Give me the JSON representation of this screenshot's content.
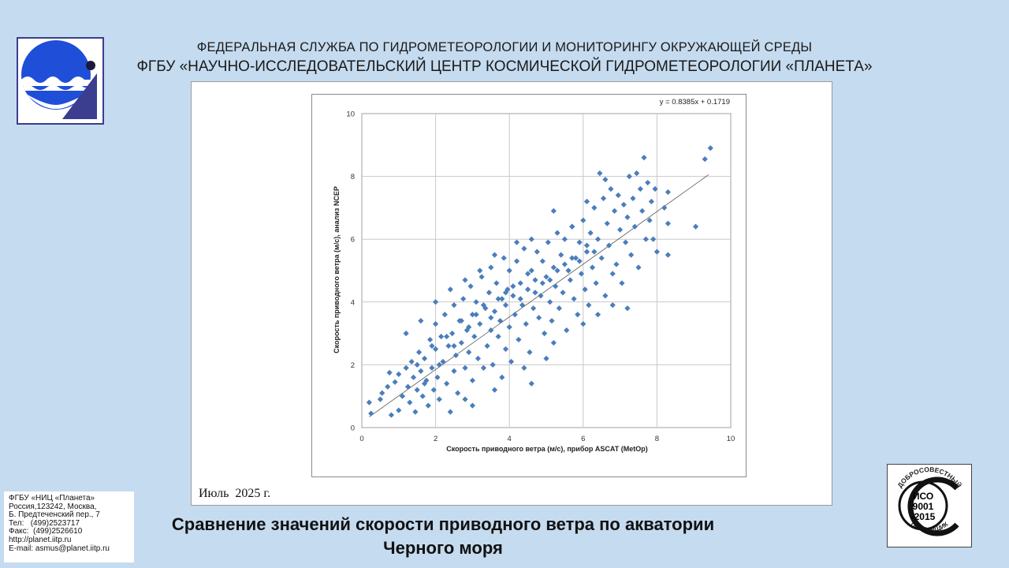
{
  "header": {
    "line1": "ФЕДЕРАЛЬНАЯ СЛУЖБА ПО ГИДРОМЕТЕОРОЛОГИИ И МОНИТОРИНГУ ОКРУЖАЮЩЕЙ СРЕДЫ",
    "line2": "ФГБУ «НАУЧНО-ИССЛЕДОВАТЕЛЬСКИЙ ЦЕНТР КОСМИЧЕСКОЙ ГИДРОМЕТЕОРОЛОГИИ «ПЛАНЕТА»"
  },
  "period": "Июль  2025 г.",
  "caption": {
    "line1": "Сравнение значений скорости приводного ветра по акватории",
    "line2": "Черного моря"
  },
  "contact": {
    "lines": [
      "ФГБУ «НИЦ «Планета»",
      "Россия,123242, Москва,",
      "Б. Предтеченский пер., 7",
      "Тел:   (499)2523717",
      "Факс:  (499)2526610",
      "http://planet.iitp.ru",
      "E-mail: asmus@planet.iitp.ru"
    ]
  },
  "certificate": {
    "top_text": "ДОБРОСОВЕСТНЫЙ",
    "bottom_text": "ПОСТАВЩИК",
    "center_lines": [
      "ИСО",
      "9001",
      "-2015"
    ]
  },
  "colors": {
    "background": "#c5dbef",
    "marker": "#4a7ebb",
    "logo_blue": "#1f4fd8",
    "logo_frame": "#3b3d8f"
  },
  "chart_data": {
    "type": "scatter",
    "xlabel": "Скорость приводного ветра (м/с), прибор ASCAT (MetOp)",
    "ylabel": "Скорость приводного ветра (м/с), анализ NCEP",
    "xlim": [
      0,
      10
    ],
    "ylim": [
      0,
      10
    ],
    "xticks": [
      "0",
      "2",
      "4",
      "6",
      "8",
      "10"
    ],
    "yticks": [
      "0",
      "2",
      "4",
      "6",
      "8",
      "10"
    ],
    "grid": true,
    "marker": "diamond",
    "trendline": {
      "slope": 0.8385,
      "intercept": 0.1719,
      "x_range": [
        0.2,
        9.4
      ],
      "label": "y = 0.8385x + 0.1719"
    },
    "points": [
      [
        0.2,
        0.8
      ],
      [
        0.25,
        0.45
      ],
      [
        0.5,
        0.9
      ],
      [
        0.55,
        1.1
      ],
      [
        0.7,
        1.3
      ],
      [
        0.75,
        1.75
      ],
      [
        0.8,
        0.4
      ],
      [
        0.9,
        1.45
      ],
      [
        1.0,
        1.7
      ],
      [
        1.0,
        0.55
      ],
      [
        1.1,
        1.0
      ],
      [
        1.2,
        1.9
      ],
      [
        1.25,
        1.3
      ],
      [
        1.3,
        0.8
      ],
      [
        1.35,
        2.1
      ],
      [
        1.4,
        1.6
      ],
      [
        1.45,
        0.5
      ],
      [
        1.5,
        1.2
      ],
      [
        1.55,
        2.4
      ],
      [
        1.6,
        1.8
      ],
      [
        1.65,
        1.0
      ],
      [
        1.7,
        2.2
      ],
      [
        1.75,
        1.5
      ],
      [
        1.8,
        0.7
      ],
      [
        1.85,
        2.8
      ],
      [
        1.9,
        1.9
      ],
      [
        1.95,
        1.2
      ],
      [
        2.0,
        2.5
      ],
      [
        2.0,
        3.3
      ],
      [
        2.05,
        1.6
      ],
      [
        2.1,
        0.9
      ],
      [
        2.15,
        2.9
      ],
      [
        2.2,
        2.1
      ],
      [
        2.25,
        3.6
      ],
      [
        2.3,
        1.4
      ],
      [
        2.35,
        2.6
      ],
      [
        2.4,
        0.5
      ],
      [
        2.45,
        3.0
      ],
      [
        2.5,
        1.8
      ],
      [
        2.5,
        3.9
      ],
      [
        2.55,
        2.3
      ],
      [
        2.6,
        1.1
      ],
      [
        2.65,
        3.4
      ],
      [
        2.7,
        2.7
      ],
      [
        2.75,
        4.1
      ],
      [
        2.8,
        1.9
      ],
      [
        2.85,
        3.1
      ],
      [
        2.9,
        2.4
      ],
      [
        2.95,
        4.5
      ],
      [
        3.0,
        1.5
      ],
      [
        3.0,
        3.6
      ],
      [
        3.05,
        2.9
      ],
      [
        3.1,
        4.0
      ],
      [
        3.15,
        2.2
      ],
      [
        3.2,
        3.3
      ],
      [
        3.25,
        4.8
      ],
      [
        3.3,
        1.9
      ],
      [
        3.35,
        3.8
      ],
      [
        3.4,
        2.6
      ],
      [
        3.45,
        4.3
      ],
      [
        3.5,
        3.1
      ],
      [
        3.5,
        5.1
      ],
      [
        3.55,
        2.0
      ],
      [
        3.6,
        3.7
      ],
      [
        3.65,
        4.6
      ],
      [
        3.7,
        2.9
      ],
      [
        3.75,
        3.4
      ],
      [
        3.8,
        4.1
      ],
      [
        3.85,
        5.4
      ],
      [
        3.9,
        2.5
      ],
      [
        3.9,
        3.9
      ],
      [
        3.95,
        4.4
      ],
      [
        4.0,
        3.2
      ],
      [
        4.0,
        5.0
      ],
      [
        4.05,
        2.1
      ],
      [
        4.1,
        4.2
      ],
      [
        4.15,
        3.6
      ],
      [
        4.2,
        5.3
      ],
      [
        4.25,
        2.8
      ],
      [
        4.3,
        4.6
      ],
      [
        4.35,
        3.9
      ],
      [
        4.4,
        5.7
      ],
      [
        4.45,
        3.3
      ],
      [
        4.5,
        4.4
      ],
      [
        4.55,
        2.4
      ],
      [
        4.6,
        5.0
      ],
      [
        4.65,
        3.8
      ],
      [
        4.7,
        4.7
      ],
      [
        4.75,
        5.6
      ],
      [
        4.8,
        3.5
      ],
      [
        4.85,
        4.2
      ],
      [
        4.9,
        5.3
      ],
      [
        4.95,
        3.0
      ],
      [
        5.0,
        4.8
      ],
      [
        5.05,
        5.9
      ],
      [
        5.1,
        4.0
      ],
      [
        5.15,
        3.4
      ],
      [
        5.2,
        5.1
      ],
      [
        5.25,
        4.5
      ],
      [
        5.3,
        6.2
      ],
      [
        5.35,
        3.8
      ],
      [
        5.4,
        5.5
      ],
      [
        5.45,
        4.3
      ],
      [
        5.5,
        6.0
      ],
      [
        5.55,
        3.1
      ],
      [
        5.6,
        5.0
      ],
      [
        5.65,
        4.7
      ],
      [
        5.7,
        6.4
      ],
      [
        5.75,
        4.1
      ],
      [
        5.8,
        5.4
      ],
      [
        5.85,
        3.6
      ],
      [
        5.9,
        5.9
      ],
      [
        5.95,
        4.9
      ],
      [
        6.0,
        6.6
      ],
      [
        6.05,
        4.4
      ],
      [
        6.1,
        5.6
      ],
      [
        6.15,
        3.9
      ],
      [
        6.2,
        6.2
      ],
      [
        6.25,
        5.1
      ],
      [
        6.3,
        7.0
      ],
      [
        6.35,
        4.6
      ],
      [
        6.4,
        6.0
      ],
      [
        6.45,
        8.1
      ],
      [
        6.5,
        5.4
      ],
      [
        6.55,
        7.3
      ],
      [
        6.6,
        4.2
      ],
      [
        6.65,
        6.5
      ],
      [
        6.7,
        5.8
      ],
      [
        6.75,
        7.6
      ],
      [
        6.8,
        4.9
      ],
      [
        6.85,
        6.9
      ],
      [
        6.9,
        5.2
      ],
      [
        6.95,
        7.4
      ],
      [
        7.0,
        6.3
      ],
      [
        7.05,
        4.6
      ],
      [
        7.1,
        7.1
      ],
      [
        7.15,
        5.9
      ],
      [
        7.2,
        6.7
      ],
      [
        7.25,
        8.0
      ],
      [
        7.3,
        5.5
      ],
      [
        7.35,
        7.3
      ],
      [
        7.4,
        6.4
      ],
      [
        7.45,
        8.1
      ],
      [
        7.5,
        5.1
      ],
      [
        7.55,
        7.6
      ],
      [
        7.6,
        6.9
      ],
      [
        7.65,
        8.6
      ],
      [
        7.7,
        6.0
      ],
      [
        7.75,
        7.8
      ],
      [
        7.8,
        6.6
      ],
      [
        7.85,
        7.2
      ],
      [
        7.9,
        6.0
      ],
      [
        7.95,
        7.6
      ],
      [
        8.0,
        5.6
      ],
      [
        8.2,
        7.0
      ],
      [
        8.3,
        5.5
      ],
      [
        8.3,
        6.5
      ],
      [
        8.3,
        7.5
      ],
      [
        9.05,
        6.4
      ],
      [
        9.3,
        8.55
      ],
      [
        9.45,
        8.9
      ],
      [
        1.5,
        2.0
      ],
      [
        1.7,
        1.4
      ],
      [
        1.9,
        2.6
      ],
      [
        2.1,
        2.0
      ],
      [
        2.3,
        2.9
      ],
      [
        2.5,
        2.6
      ],
      [
        2.7,
        3.4
      ],
      [
        2.9,
        3.2
      ],
      [
        3.1,
        3.6
      ],
      [
        3.3,
        3.9
      ],
      [
        3.5,
        3.5
      ],
      [
        3.7,
        4.1
      ],
      [
        3.9,
        4.3
      ],
      [
        4.1,
        4.5
      ],
      [
        4.3,
        4.1
      ],
      [
        4.5,
        4.9
      ],
      [
        4.7,
        4.3
      ],
      [
        4.9,
        4.6
      ],
      [
        5.1,
        4.7
      ],
      [
        5.3,
        5.0
      ],
      [
        5.5,
        5.2
      ],
      [
        5.7,
        5.4
      ],
      [
        5.9,
        5.3
      ],
      [
        6.1,
        5.8
      ],
      [
        6.3,
        5.6
      ],
      [
        4.6,
        1.4
      ],
      [
        4.4,
        1.9
      ],
      [
        5.0,
        2.2
      ],
      [
        5.2,
        2.7
      ],
      [
        6.0,
        3.3
      ],
      [
        6.4,
        3.6
      ],
      [
        6.8,
        3.9
      ],
      [
        7.2,
        3.8
      ],
      [
        3.0,
        0.7
      ],
      [
        2.8,
        0.9
      ],
      [
        3.6,
        1.2
      ],
      [
        3.8,
        1.6
      ],
      [
        1.2,
        3.0
      ],
      [
        1.6,
        3.4
      ],
      [
        2.0,
        4.0
      ],
      [
        2.4,
        4.4
      ],
      [
        2.8,
        4.7
      ],
      [
        3.2,
        5.0
      ],
      [
        3.6,
        5.5
      ],
      [
        4.2,
        5.9
      ],
      [
        4.6,
        6.0
      ],
      [
        5.2,
        6.9
      ],
      [
        5.7,
        6.4
      ],
      [
        6.1,
        7.2
      ],
      [
        6.6,
        7.9
      ]
    ]
  }
}
